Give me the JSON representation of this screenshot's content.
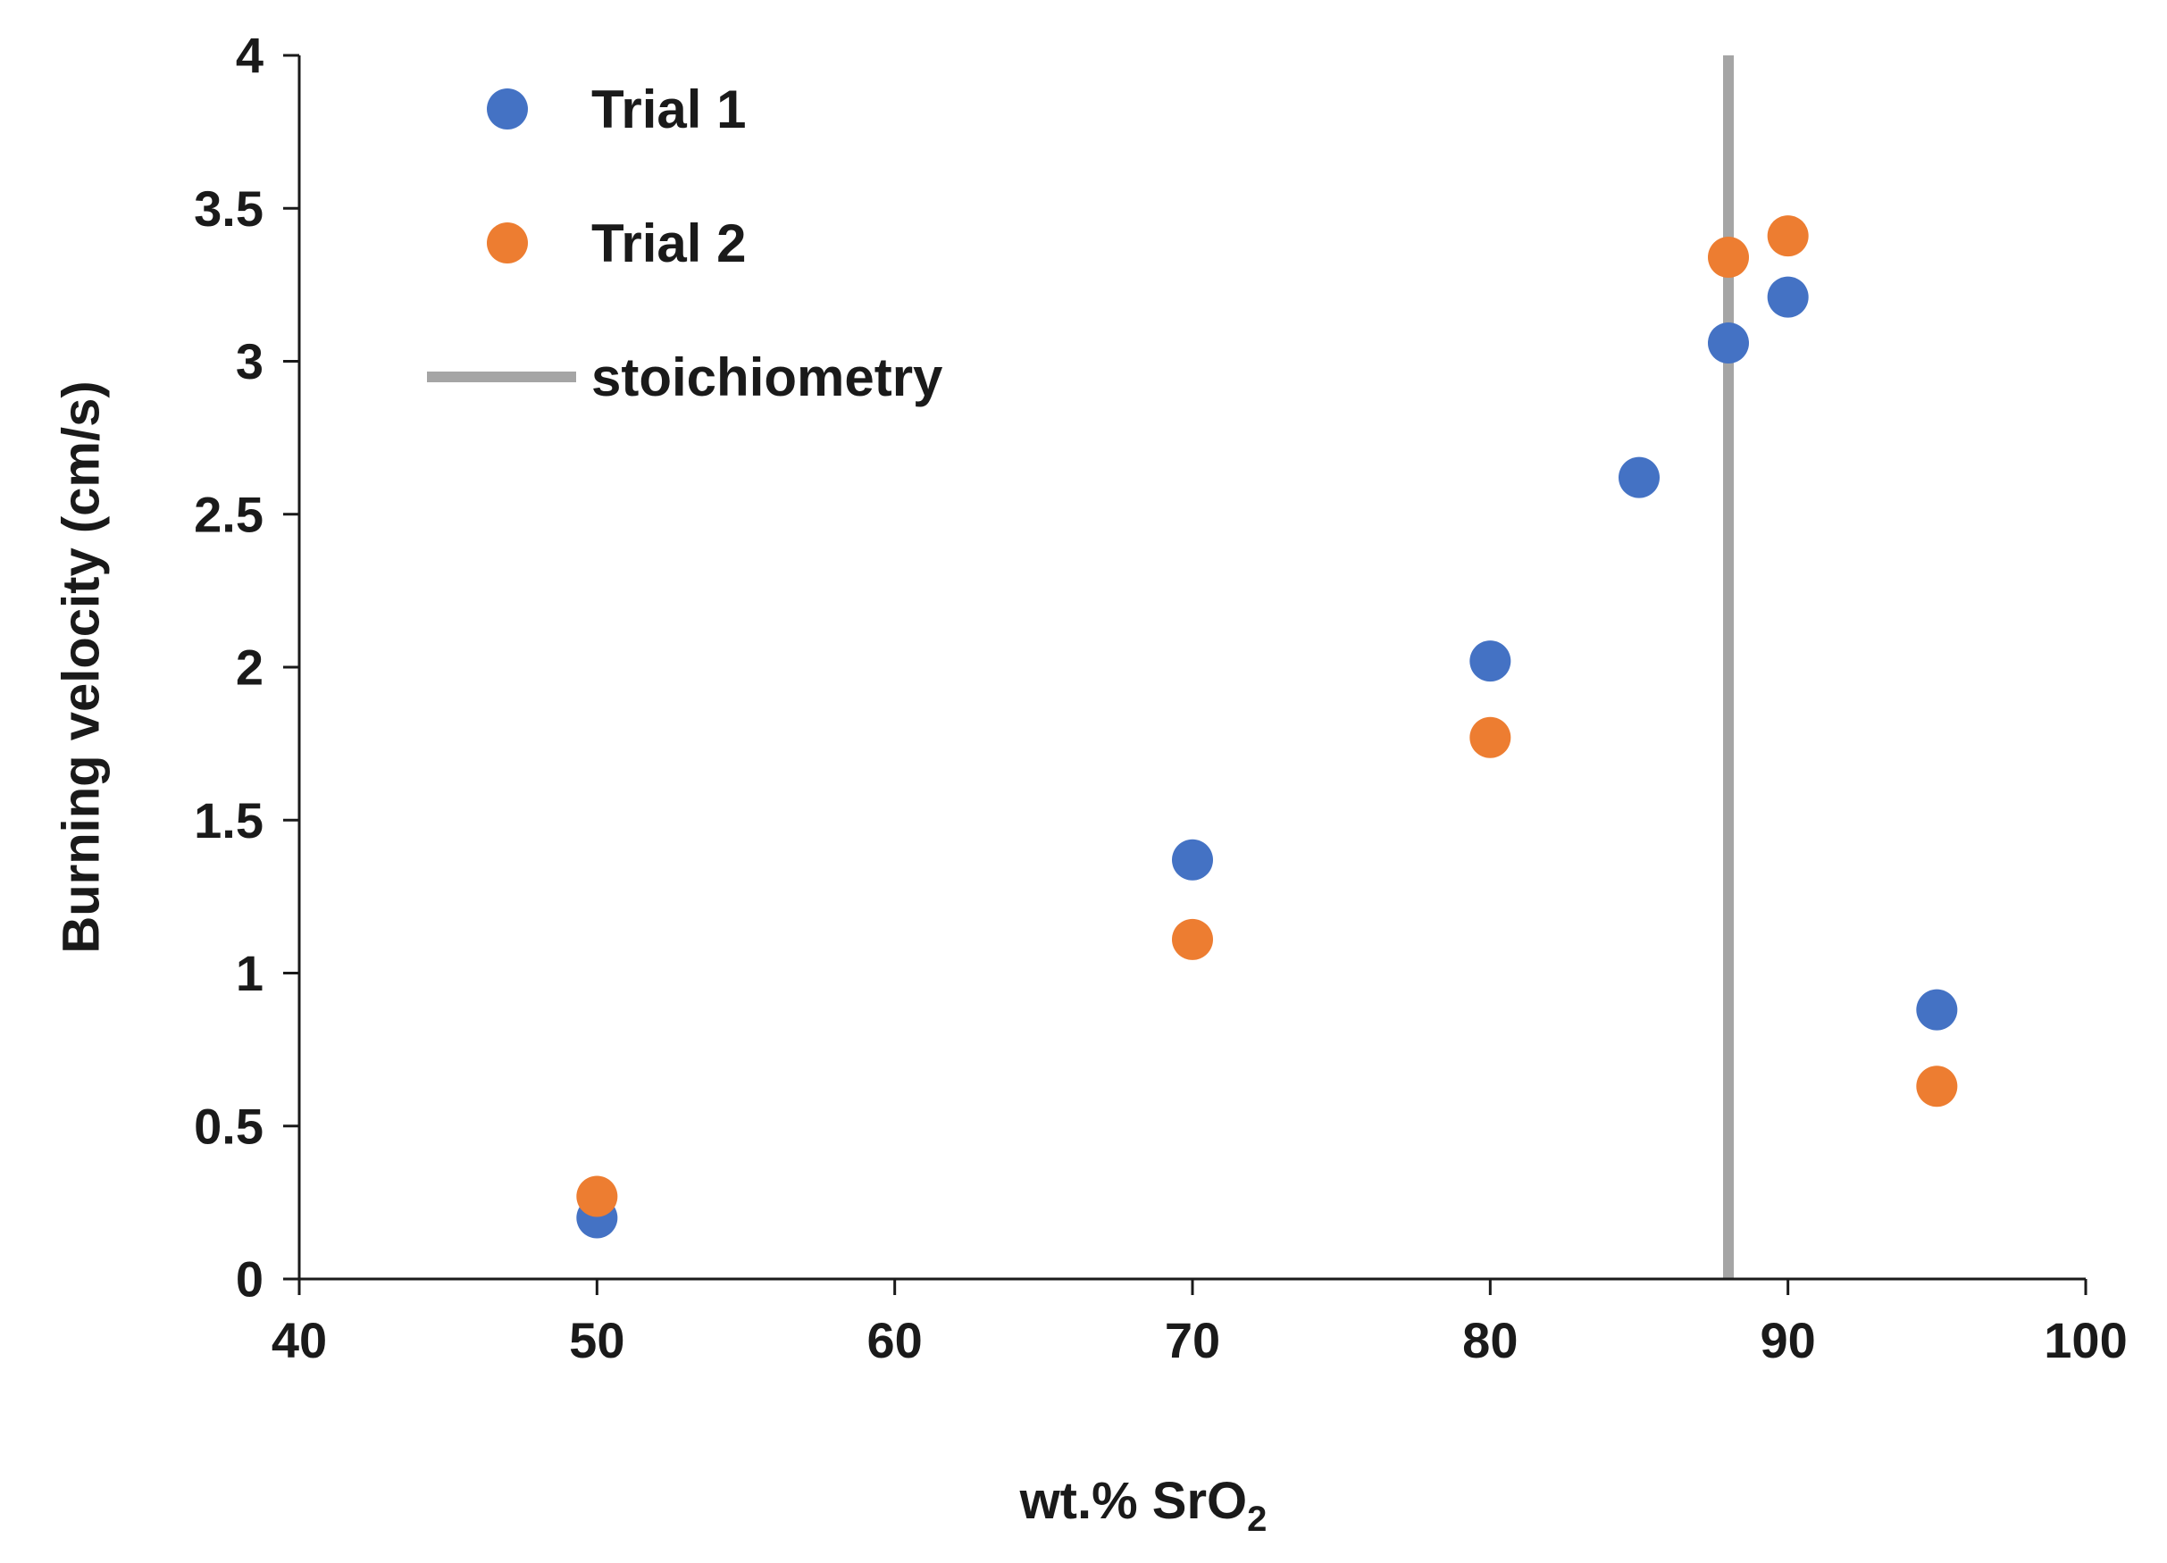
{
  "chart_data": {
    "type": "scatter",
    "title": "",
    "xlabel": "wt.% SrO",
    "xlabel_subscript": "2",
    "ylabel": "Burning velocity (cm/s)",
    "xlim": [
      40,
      100
    ],
    "ylim": [
      0,
      4
    ],
    "xticks": [
      40,
      50,
      60,
      70,
      80,
      90,
      100
    ],
    "yticks": [
      0,
      0.5,
      1,
      1.5,
      2,
      2.5,
      3,
      3.5,
      4
    ],
    "ytick_labels": [
      "0",
      "0.5",
      "1",
      "1.5",
      "2",
      "2.5",
      "3",
      "3.5",
      "4"
    ],
    "grid": false,
    "legend_position": "top-left",
    "series": [
      {
        "name": "Trial 1",
        "color": "#4472C4",
        "x": [
          50,
          70,
          80,
          85,
          88,
          90,
          95
        ],
        "y": [
          0.2,
          1.37,
          2.02,
          2.62,
          3.06,
          3.21,
          0.88
        ]
      },
      {
        "name": "Trial 2",
        "color": "#ED7D31",
        "x": [
          50,
          70,
          80,
          88,
          90,
          95
        ],
        "y": [
          0.27,
          1.11,
          1.77,
          3.34,
          3.41,
          0.63
        ]
      }
    ],
    "reference_lines": [
      {
        "name": "stoichiometry",
        "orientation": "vertical",
        "x": 88,
        "color": "#A5A5A5"
      }
    ]
  }
}
